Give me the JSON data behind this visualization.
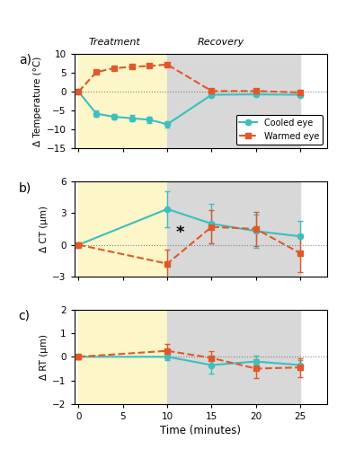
{
  "time_points_a": [
    0,
    2,
    4,
    6,
    8,
    10,
    15,
    20,
    25
  ],
  "cooled_temp": [
    0,
    -5.8,
    -6.6,
    -7.0,
    -7.4,
    -8.6,
    -0.8,
    -0.7,
    -0.8
  ],
  "cooled_temp_err": [
    0.3,
    0.8,
    0.8,
    0.8,
    0.8,
    0.9,
    0.7,
    0.5,
    0.4
  ],
  "warmed_temp": [
    0,
    5.2,
    6.2,
    6.6,
    6.8,
    7.2,
    0.2,
    0.2,
    -0.2
  ],
  "warmed_temp_err": [
    0.3,
    0.5,
    0.4,
    0.4,
    0.4,
    0.4,
    0.3,
    0.3,
    0.3
  ],
  "time_points_b": [
    0,
    10,
    15,
    20,
    25
  ],
  "cooled_ct": [
    0,
    3.4,
    2.0,
    1.3,
    0.8
  ],
  "cooled_ct_err": [
    0.2,
    1.7,
    1.9,
    1.6,
    1.5
  ],
  "warmed_ct": [
    0,
    -1.8,
    1.7,
    1.5,
    -0.8
  ],
  "warmed_ct_err": [
    0.2,
    1.3,
    1.6,
    1.6,
    1.8
  ],
  "time_points_c": [
    0,
    10,
    15,
    20,
    25
  ],
  "cooled_rt": [
    0,
    0.0,
    -0.35,
    -0.2,
    -0.35
  ],
  "cooled_rt_err": [
    0.1,
    0.15,
    0.35,
    0.25,
    0.2
  ],
  "warmed_rt": [
    0,
    0.25,
    -0.05,
    -0.5,
    -0.45
  ],
  "warmed_rt_err": [
    0.1,
    0.3,
    0.3,
    0.4,
    0.4
  ],
  "cooled_color": "#3bbfbf",
  "warmed_color": "#e0582a",
  "treatment_color": "#fdf6c8",
  "recovery_color": "#d8d8d8",
  "treatment_start": 0,
  "treatment_end": 10,
  "recovery_start": 10,
  "recovery_end": 25,
  "xlim": [
    -0.5,
    28
  ],
  "xticks": [
    0,
    5,
    10,
    15,
    20,
    25
  ],
  "ylim_a": [
    -15,
    10
  ],
  "yticks_a": [
    -15,
    -10,
    -5,
    0,
    5,
    10
  ],
  "ylim_b": [
    -3,
    6
  ],
  "yticks_b": [
    -3,
    0,
    3,
    6
  ],
  "ylim_c": [
    -2,
    2
  ],
  "yticks_c": [
    -2,
    -1,
    0,
    1,
    2
  ],
  "ylabel_a": "Δ Temperature (°C)",
  "ylabel_b": "Δ CT (μm)",
  "ylabel_c": "Δ RT (μm)",
  "xlabel": "Time (minutes)",
  "label_cooled": "Cooled eye",
  "label_warmed": "Warmed eye",
  "treatment_label": "Treatment",
  "recovery_label": "Recovery",
  "panel_a": "a)",
  "panel_b": "b)",
  "panel_c": "c)",
  "star_x": 11.0,
  "star_y": 0.35
}
